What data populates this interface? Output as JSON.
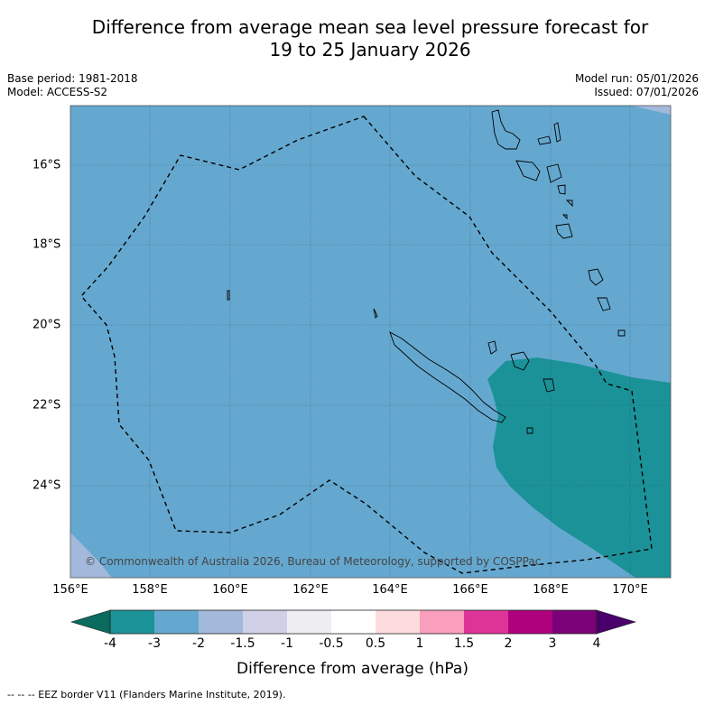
{
  "title_line1": "Difference from average mean sea level pressure forecast for",
  "title_line2": "19 to 25 January 2026",
  "meta": {
    "base_period": "Base period: 1981-2018",
    "model": "Model: ACCESS-S2",
    "model_run": "Model run: 05/01/2026",
    "issued": "Issued: 07/01/2026"
  },
  "map": {
    "lon_range": [
      156,
      171
    ],
    "lat_range": [
      -26.1,
      -14.5
    ],
    "lon_ticks": [
      "156°E",
      "158°E",
      "160°E",
      "162°E",
      "164°E",
      "166°E",
      "168°E",
      "170°E"
    ],
    "lat_ticks": [
      "16°S",
      "18°S",
      "20°S",
      "22°S",
      "24°S"
    ],
    "copyright": "© Commonwealth of Australia 2026, Bureau of Meteorology, supported by COSPPac",
    "colors": {
      "band_minus3_minus2": "#65a8cf",
      "band_minus2_minus1_5": "#a3b9db",
      "band_minus4_minus3": "#1b9298"
    }
  },
  "colorbar": {
    "ticks": [
      "-4",
      "-3",
      "-2",
      "-1.5",
      "-1",
      "-0.5",
      "0.5",
      "1",
      "1.5",
      "2",
      "3",
      "4"
    ],
    "colors": [
      "#1b9298",
      "#65a8cf",
      "#a3b9db",
      "#d0d0e6",
      "#eeeef2",
      "#ffffff",
      "#fddcde",
      "#f99ebc",
      "#dd3497",
      "#ae017e",
      "#7a0177"
    ],
    "under_color": "#0a6b5e",
    "over_color": "#49006a",
    "label": "Difference from average (hPa)"
  },
  "footnote": "--  --  -- EEZ border V11 (Flanders Marine Institute, 2019)."
}
